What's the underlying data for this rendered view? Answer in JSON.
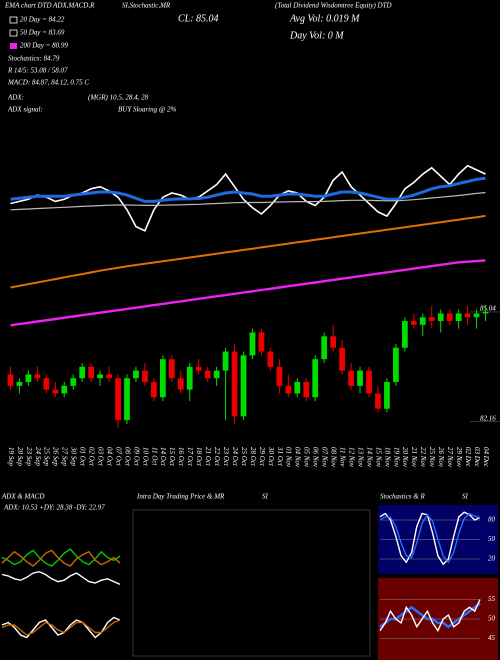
{
  "chart_data": [
    {
      "type": "candlestick",
      "annotations": [
        "EMA chart DTD ADX,MACD,R",
        "SI,Stochastic,MR",
        "(Total Dividend Wisdomtree Equity) DTD",
        "CL: 85.04",
        "Avg Vol: 0.019 M",
        "Day Vol: 0  M",
        "20 Day = 84.22",
        "50 Day = 83.69",
        "200 Day = 80.99",
        "Stochastics: 84.79",
        "R 14/5: 53.08 / 58.07",
        "MACD: 84.87, 84.12, 0.75 C",
        "ADX:",
        "(MGR) 10.5, 28.4, 28",
        "ADX  signal:",
        "BUY Sloaring @ 2%"
      ],
      "categories": [
        "19 Sep",
        "20 Sep",
        "23 Sep",
        "24 Sep",
        "25 Sep",
        "26 Sep",
        "27 Sep",
        "30 Sep",
        "01 Oct",
        "02 Oct",
        "03 Oct",
        "04 Oct",
        "07 Oct",
        "08 Oct",
        "09 Oct",
        "10 Oct",
        "11 Oct",
        "14 Oct",
        "15 Oct",
        "16 Oct",
        "17 Oct",
        "18 Oct",
        "21 Oct",
        "22 Oct",
        "23 Oct",
        "24 Oct",
        "25 Oct",
        "28 Oct",
        "29 Oct",
        "30 Oct",
        "31 Oct",
        "01 Nov",
        "04 Nov",
        "05 Nov",
        "06 Nov",
        "07 Nov",
        "08 Nov",
        "11 Nov",
        "12 Nov",
        "13 Nov",
        "14 Nov",
        "15 Nov",
        "18 Nov",
        "19 Nov",
        "20 Nov",
        "21 Nov",
        "22 Nov",
        "25 Nov",
        "26 Nov",
        "27 Nov",
        "29 Nov",
        "02 Dec",
        "03 Dec",
        "04 Dec"
      ],
      "candles": [
        [
          83.4,
          83.6,
          83.0,
          83.1
        ],
        [
          83.1,
          83.3,
          82.9,
          83.2
        ],
        [
          83.2,
          83.5,
          83.1,
          83.4
        ],
        [
          83.4,
          83.6,
          83.2,
          83.3
        ],
        [
          83.3,
          83.4,
          82.9,
          83.0
        ],
        [
          83.0,
          83.2,
          82.8,
          82.9
        ],
        [
          82.9,
          83.2,
          82.8,
          83.1
        ],
        [
          83.1,
          83.4,
          83.0,
          83.3
        ],
        [
          83.3,
          83.7,
          83.2,
          83.6
        ],
        [
          83.6,
          83.7,
          83.2,
          83.3
        ],
        [
          83.3,
          83.5,
          83.1,
          83.4
        ],
        [
          83.4,
          83.6,
          83.2,
          83.3
        ],
        [
          83.3,
          83.4,
          82.0,
          82.2
        ],
        [
          82.2,
          83.4,
          82.1,
          83.3
        ],
        [
          83.3,
          83.6,
          83.2,
          83.5
        ],
        [
          83.5,
          83.7,
          83.1,
          83.2
        ],
        [
          83.2,
          83.3,
          82.7,
          82.8
        ],
        [
          82.8,
          83.9,
          82.7,
          83.8
        ],
        [
          83.8,
          83.9,
          83.2,
          83.3
        ],
        [
          83.3,
          83.5,
          82.9,
          83.0
        ],
        [
          83.0,
          83.7,
          82.7,
          83.6
        ],
        [
          83.6,
          83.8,
          83.4,
          83.5
        ],
        [
          83.5,
          83.6,
          83.2,
          83.3
        ],
        [
          83.3,
          83.6,
          83.1,
          83.5
        ],
        [
          83.5,
          84.1,
          82.2,
          84.0
        ],
        [
          84.0,
          84.2,
          82.1,
          82.3
        ],
        [
          82.3,
          84.0,
          82.2,
          83.9
        ],
        [
          83.9,
          84.6,
          83.8,
          84.5
        ],
        [
          84.5,
          84.6,
          83.9,
          84.0
        ],
        [
          84.0,
          84.1,
          83.5,
          83.6
        ],
        [
          83.6,
          83.8,
          82.9,
          83.1
        ],
        [
          83.1,
          83.4,
          82.8,
          82.9
        ],
        [
          82.9,
          83.3,
          82.8,
          83.2
        ],
        [
          83.2,
          83.3,
          82.7,
          82.8
        ],
        [
          82.8,
          83.9,
          82.7,
          83.8
        ],
        [
          83.8,
          84.5,
          83.7,
          84.4
        ],
        [
          84.4,
          84.7,
          84.0,
          84.1
        ],
        [
          84.1,
          84.3,
          83.4,
          83.5
        ],
        [
          83.5,
          83.7,
          83.0,
          83.1
        ],
        [
          83.1,
          83.6,
          82.9,
          83.5
        ],
        [
          83.5,
          83.6,
          82.8,
          82.9
        ],
        [
          82.9,
          83.1,
          82.4,
          82.5
        ],
        [
          82.5,
          83.3,
          82.4,
          83.2
        ],
        [
          83.2,
          84.2,
          83.1,
          84.1
        ],
        [
          84.1,
          84.9,
          84.0,
          84.8
        ],
        [
          84.8,
          85.0,
          84.6,
          84.7
        ],
        [
          84.7,
          85.0,
          84.4,
          84.9
        ],
        [
          84.9,
          85.2,
          84.6,
          84.8
        ],
        [
          84.8,
          85.1,
          84.5,
          85.0
        ],
        [
          85.0,
          85.1,
          84.7,
          84.8
        ],
        [
          84.8,
          85.1,
          84.6,
          85.0
        ],
        [
          85.0,
          85.2,
          84.7,
          84.9
        ],
        [
          84.9,
          85.1,
          84.6,
          85.0
        ],
        [
          85.0,
          85.2,
          84.8,
          85.04
        ]
      ],
      "up_color": "#00dd00",
      "down_color": "#ee0000",
      "ylim": [
        81.6,
        85.3
      ],
      "yticks": [
        85.04,
        82.16
      ],
      "overlay": {
        "ylim": [
          78,
          88
        ],
        "series": [
          {
            "color": "#ffffff",
            "width": 1.6,
            "values": [
              84.5,
              84.6,
              84.7,
              84.9,
              84.8,
              84.6,
              84.7,
              84.9,
              85.0,
              85.2,
              85.3,
              85.1,
              84.8,
              84.2,
              83.4,
              83.2,
              84.2,
              84.8,
              85.0,
              84.9,
              84.7,
              84.8,
              85.1,
              85.4,
              85.9,
              85.3,
              84.7,
              84.3,
              84.0,
              84.4,
              84.9,
              85.1,
              85.0,
              84.6,
              84.4,
              84.8,
              85.6,
              86.0,
              85.3,
              84.9,
              84.5,
              84.1,
              83.9,
              84.5,
              85.2,
              85.5,
              85.9,
              86.2,
              85.8,
              85.4,
              85.9,
              86.3,
              86.1,
              85.9
            ]
          },
          {
            "color": "#1e6be0",
            "width": 3,
            "values": [
              84.7,
              84.75,
              84.8,
              84.85,
              84.85,
              84.85,
              84.85,
              84.9,
              84.95,
              85.0,
              85.05,
              85.05,
              85.0,
              84.9,
              84.75,
              84.6,
              84.6,
              84.65,
              84.7,
              84.72,
              84.72,
              84.74,
              84.8,
              84.9,
              85.0,
              85.05,
              85.0,
              84.95,
              84.85,
              84.85,
              84.9,
              84.95,
              84.95,
              84.9,
              84.85,
              84.85,
              84.95,
              85.05,
              85.05,
              85.0,
              84.9,
              84.8,
              84.7,
              84.7,
              84.8,
              84.9,
              85.05,
              85.2,
              85.3,
              85.35,
              85.45,
              85.55,
              85.65,
              85.7
            ]
          },
          {
            "color": "#bbbbbb",
            "width": 1.2,
            "values": [
              84.2,
              84.22,
              84.24,
              84.26,
              84.28,
              84.3,
              84.32,
              84.34,
              84.36,
              84.38,
              84.4,
              84.42,
              84.43,
              84.43,
              84.42,
              84.41,
              84.41,
              84.42,
              84.43,
              84.44,
              84.45,
              84.46,
              84.48,
              84.5,
              84.52,
              84.54,
              84.55,
              84.55,
              84.55,
              84.56,
              84.57,
              84.58,
              84.59,
              84.59,
              84.59,
              84.6,
              84.62,
              84.64,
              84.65,
              84.65,
              84.65,
              84.64,
              84.63,
              84.63,
              84.65,
              84.68,
              84.72,
              84.76,
              84.8,
              84.84,
              84.88,
              84.93,
              84.98,
              85.02
            ]
          },
          {
            "color": "#e07000",
            "width": 2,
            "values": [
              80.5,
              80.58,
              80.66,
              80.74,
              80.82,
              80.9,
              80.98,
              81.06,
              81.14,
              81.22,
              81.3,
              81.37,
              81.44,
              81.51,
              81.57,
              81.63,
              81.69,
              81.75,
              81.81,
              81.87,
              81.93,
              81.99,
              82.05,
              82.11,
              82.17,
              82.23,
              82.29,
              82.35,
              82.41,
              82.47,
              82.53,
              82.59,
              82.65,
              82.71,
              82.77,
              82.83,
              82.89,
              82.95,
              83.01,
              83.07,
              83.13,
              83.19,
              83.25,
              83.31,
              83.37,
              83.43,
              83.49,
              83.55,
              83.61,
              83.67,
              83.73,
              83.79,
              83.85,
              83.91
            ]
          },
          {
            "color": "#ee22ee",
            "width": 2.4,
            "values": [
              78.7,
              78.76,
              78.82,
              78.88,
              78.94,
              79.0,
              79.06,
              79.12,
              79.18,
              79.24,
              79.3,
              79.36,
              79.42,
              79.48,
              79.54,
              79.6,
              79.66,
              79.72,
              79.78,
              79.84,
              79.9,
              79.96,
              80.02,
              80.08,
              80.14,
              80.2,
              80.26,
              80.32,
              80.38,
              80.44,
              80.5,
              80.56,
              80.62,
              80.68,
              80.74,
              80.8,
              80.86,
              80.92,
              80.98,
              81.04,
              81.1,
              81.16,
              81.22,
              81.28,
              81.34,
              81.4,
              81.46,
              81.52,
              81.58,
              81.64,
              81.7,
              81.73,
              81.76,
              81.79
            ]
          }
        ]
      }
    },
    {
      "type": "line",
      "title": "ADX & MACD",
      "subtitle": "ADX: 10.53  +DY: 28.38  -DY: 22.97",
      "ylim": [
        0,
        60
      ],
      "series": [
        {
          "color": "#00cc00",
          "values": [
            30,
            28,
            25,
            27,
            32,
            35,
            30,
            26,
            24,
            28,
            33,
            36,
            31,
            27,
            25,
            29,
            34,
            30,
            28,
            31
          ]
        },
        {
          "color": "#cc6600",
          "values": [
            26,
            30,
            34,
            31,
            27,
            24,
            28,
            33,
            35,
            30,
            26,
            24,
            29,
            32,
            34,
            28,
            25,
            27,
            30,
            26
          ]
        },
        {
          "color": "#ffffff",
          "values": [
            18,
            17,
            15,
            14,
            16,
            19,
            20,
            18,
            15,
            13,
            14,
            17,
            19,
            16,
            13,
            12,
            14,
            15,
            13,
            11
          ]
        }
      ]
    },
    {
      "type": "line",
      "ylim": [
        -1,
        1
      ],
      "series": [
        {
          "color": "#ffffff",
          "values": [
            0.2,
            0.3,
            0.1,
            -0.2,
            -0.3,
            0.0,
            0.3,
            0.4,
            0.1,
            -0.2,
            -0.1,
            0.2,
            0.4,
            0.3,
            0.0,
            -0.3,
            -0.1,
            0.3,
            0.5,
            0.4
          ]
        },
        {
          "color": "#cc6600",
          "values": [
            0.1,
            0.2,
            0.2,
            0.0,
            -0.2,
            -0.1,
            0.1,
            0.3,
            0.2,
            0.0,
            -0.1,
            0.1,
            0.3,
            0.3,
            0.1,
            -0.1,
            -0.1,
            0.1,
            0.3,
            0.4
          ]
        }
      ]
    },
    {
      "type": "blank",
      "title": "Intra Day Trading Price & MR",
      "subtitle": "SI"
    },
    {
      "type": "line",
      "title": "Stochastics & R",
      "subtitle": "SI",
      "background": "#000066",
      "ylim": [
        0,
        100
      ],
      "yticks": [
        80,
        50,
        20
      ],
      "series": [
        {
          "color": "#ffffff",
          "values": [
            85,
            90,
            80,
            55,
            25,
            15,
            30,
            70,
            90,
            88,
            60,
            25,
            12,
            20,
            55,
            85,
            92,
            88,
            80,
            84
          ]
        },
        {
          "color": "#2a6cff",
          "values": [
            80,
            85,
            84,
            70,
            45,
            25,
            22,
            45,
            75,
            88,
            78,
            50,
            25,
            15,
            30,
            60,
            82,
            90,
            86,
            84
          ]
        }
      ]
    },
    {
      "type": "line",
      "background": "#6a0000",
      "ylim": [
        40,
        60
      ],
      "yticks": [
        55,
        50,
        45
      ],
      "series": [
        {
          "color": "#2a6cff",
          "values": [
            48,
            49,
            50,
            50,
            51,
            52,
            53,
            52,
            51,
            50,
            50,
            49,
            49,
            48,
            49,
            50,
            51,
            52,
            53,
            54
          ]
        },
        {
          "color": "#ffffff",
          "values": [
            47,
            49,
            52,
            50,
            49,
            53,
            51,
            48,
            50,
            52,
            49,
            47,
            50,
            51,
            48,
            49,
            52,
            53,
            52,
            55
          ]
        }
      ]
    }
  ]
}
